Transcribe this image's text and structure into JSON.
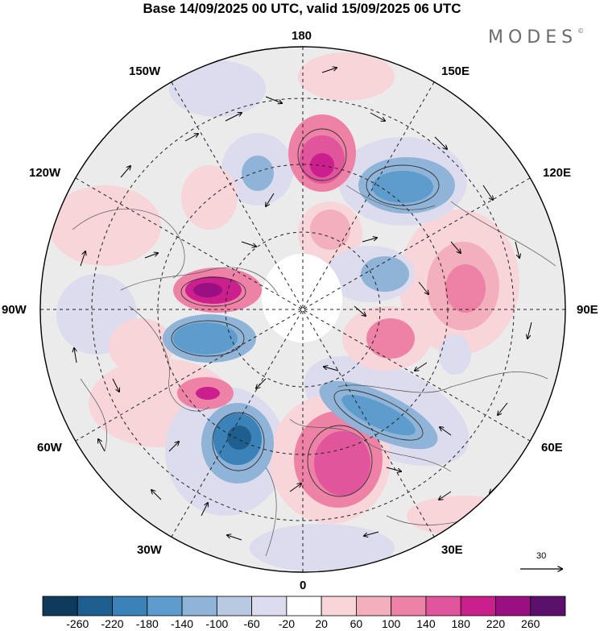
{
  "title": "Base 14/09/2025 00 UTC, valid 15/09/2025 06 UTC",
  "brand": "MODES",
  "brand_mark": "©",
  "longitude_labels": {
    "top": "180",
    "top_left": "150W",
    "top_right": "150E",
    "upper_left": "120W",
    "upper_right": "120E",
    "left": "90W",
    "right": "90E",
    "lower_left": "60W",
    "lower_right": "60E",
    "bottom_left": "30W",
    "bottom_right": "30E",
    "bottom": "0"
  },
  "reference_vector": {
    "label": "30"
  },
  "colorbar": {
    "labels": [
      "-260",
      "-220",
      "-180",
      "-140",
      "-100",
      "-60",
      "-20",
      "20",
      "60",
      "100",
      "140",
      "180",
      "220",
      "260"
    ],
    "colors": [
      "#0e3a5c",
      "#1f5f8f",
      "#3a82b8",
      "#5d9ccc",
      "#8fb4d8",
      "#b8c9e2",
      "#dcdcee",
      "#ffffff",
      "#f7d5d8",
      "#f4afbd",
      "#ed82a6",
      "#e0559b",
      "#cc1f8e",
      "#9a0f82",
      "#5b106c"
    ]
  }
}
